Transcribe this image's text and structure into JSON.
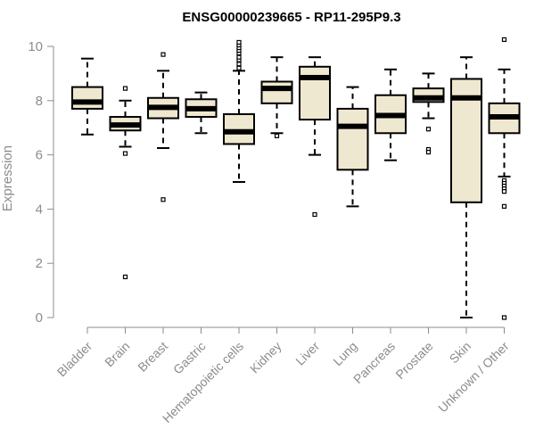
{
  "chart_data": {
    "type": "boxplot",
    "title": "ENSG00000239665 - RP11-295P9.3",
    "xlabel": "",
    "ylabel": "Expression",
    "ylim": [
      0,
      10
    ],
    "yticks": [
      0,
      2,
      4,
      6,
      8,
      10
    ],
    "box_fill": "#efe8d0",
    "stroke_color": "#000000",
    "axis_color": "#8c8c8c",
    "categories": [
      "Bladder",
      "Brain",
      "Breast",
      "Gastric",
      "Hematopoietic cells",
      "Kidney",
      "Liver",
      "Lung",
      "Pancreas",
      "Prostate",
      "Skin",
      "Unknown / Other"
    ],
    "boxes": [
      {
        "category": "Bladder",
        "whisker_low": 6.75,
        "q1": 7.7,
        "median": 7.95,
        "q3": 8.5,
        "whisker_high": 9.55,
        "outliers": []
      },
      {
        "category": "Brain",
        "whisker_low": 6.3,
        "q1": 6.9,
        "median": 7.1,
        "q3": 7.4,
        "whisker_high": 8.0,
        "outliers": [
          8.45,
          6.05,
          1.5
        ]
      },
      {
        "category": "Breast",
        "whisker_low": 6.25,
        "q1": 7.35,
        "median": 7.75,
        "q3": 8.1,
        "whisker_high": 9.1,
        "outliers": [
          9.7,
          4.35
        ]
      },
      {
        "category": "Gastric",
        "whisker_low": 6.8,
        "q1": 7.4,
        "median": 7.7,
        "q3": 8.05,
        "whisker_high": 8.3,
        "outliers": []
      },
      {
        "category": "Hematopoietic cells",
        "whisker_low": 5.0,
        "q1": 6.4,
        "median": 6.85,
        "q3": 7.5,
        "whisker_high": 9.1,
        "outliers": [
          9.2,
          9.35,
          9.5,
          9.6,
          9.75,
          9.85,
          9.95,
          10.05,
          10.15
        ]
      },
      {
        "category": "Kidney",
        "whisker_low": 6.8,
        "q1": 7.9,
        "median": 8.45,
        "q3": 8.7,
        "whisker_high": 9.6,
        "outliers": [
          6.7
        ]
      },
      {
        "category": "Liver",
        "whisker_low": 6.0,
        "q1": 7.3,
        "median": 8.85,
        "q3": 9.25,
        "whisker_high": 9.6,
        "outliers": [
          3.8
        ]
      },
      {
        "category": "Lung",
        "whisker_low": 4.1,
        "q1": 5.45,
        "median": 7.05,
        "q3": 7.7,
        "whisker_high": 8.5,
        "outliers": []
      },
      {
        "category": "Pancreas",
        "whisker_low": 5.8,
        "q1": 6.8,
        "median": 7.45,
        "q3": 8.2,
        "whisker_high": 9.15,
        "outliers": []
      },
      {
        "category": "Prostate",
        "whisker_low": 7.35,
        "q1": 7.95,
        "median": 8.1,
        "q3": 8.45,
        "whisker_high": 9.0,
        "outliers": [
          6.95,
          6.2,
          6.1
        ]
      },
      {
        "category": "Skin",
        "whisker_low": 0.0,
        "q1": 4.25,
        "median": 8.1,
        "q3": 8.8,
        "whisker_high": 9.6,
        "outliers": []
      },
      {
        "category": "Unknown / Other",
        "whisker_low": 5.2,
        "q1": 6.8,
        "median": 7.4,
        "q3": 7.9,
        "whisker_high": 9.15,
        "outliers": [
          10.25,
          5.05,
          4.95,
          4.85,
          4.75,
          4.65,
          4.1,
          0.0
        ]
      }
    ]
  }
}
